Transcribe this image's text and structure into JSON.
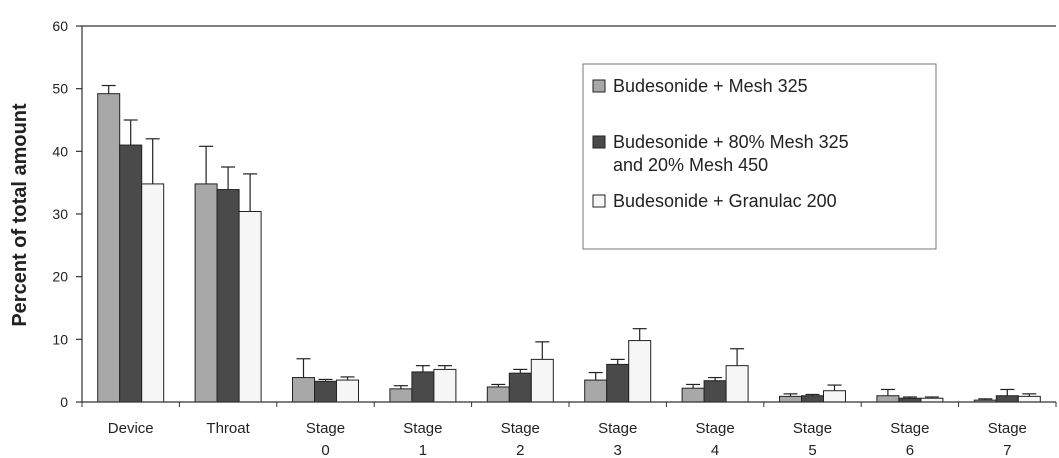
{
  "chart_data": {
    "type": "bar",
    "title": "",
    "xlabel": "",
    "ylabel": "Percent of total amount",
    "ylim": [
      0,
      60
    ],
    "yticks": [
      0,
      10,
      20,
      30,
      40,
      50,
      60
    ],
    "grid": false,
    "legend_position": "top-right",
    "categories": [
      [
        "Device"
      ],
      [
        "Throat"
      ],
      [
        "Stage",
        "0"
      ],
      [
        "Stage",
        "1"
      ],
      [
        "Stage",
        "2"
      ],
      [
        "Stage",
        "3"
      ],
      [
        "Stage",
        "4"
      ],
      [
        "Stage",
        "5"
      ],
      [
        "Stage",
        "6"
      ],
      [
        "Stage",
        "7"
      ]
    ],
    "series": [
      {
        "name": "Budesonide + Mesh 325",
        "legend_lines": [
          "Budesonide + Mesh 325"
        ],
        "color": "#a8a8a8",
        "values": [
          49.2,
          34.8,
          3.9,
          2.1,
          2.4,
          3.5,
          2.2,
          0.9,
          1.0,
          0.3
        ],
        "errors": [
          1.3,
          6.0,
          3.0,
          0.5,
          0.4,
          1.2,
          0.6,
          0.4,
          1.0,
          0.2
        ]
      },
      {
        "name": "Budesonide + 80% Mesh 325 and 20% Mesh 450",
        "legend_lines": [
          "Budesonide + 80% Mesh 325",
          "and 20% Mesh 450"
        ],
        "color": "#4a4a4a",
        "values": [
          41.0,
          33.9,
          3.3,
          4.8,
          4.6,
          6.0,
          3.4,
          1.0,
          0.6,
          1.0
        ],
        "errors": [
          4.0,
          3.6,
          0.3,
          1.0,
          0.6,
          0.8,
          0.5,
          0.2,
          0.2,
          1.0
        ]
      },
      {
        "name": "Budesonide + Granulac 200",
        "legend_lines": [
          "Budesonide + Granulac 200"
        ],
        "color": "#f6f6f6",
        "values": [
          34.8,
          30.4,
          3.5,
          5.2,
          6.8,
          9.8,
          5.8,
          1.8,
          0.6,
          0.9
        ],
        "errors": [
          7.2,
          6.0,
          0.5,
          0.6,
          2.8,
          1.9,
          2.7,
          0.9,
          0.2,
          0.4
        ]
      }
    ]
  }
}
